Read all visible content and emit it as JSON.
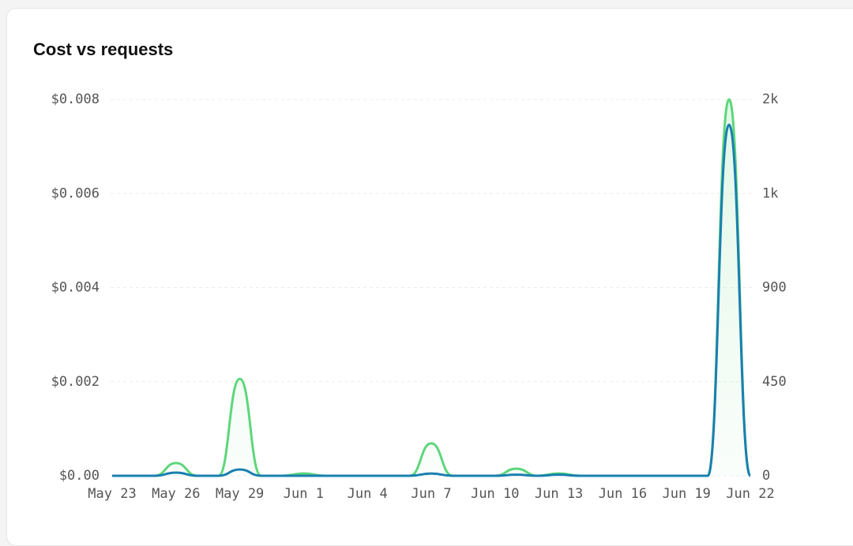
{
  "chart_data": {
    "type": "line",
    "title": "Cost vs requests",
    "categories": [
      "May 23",
      null,
      null,
      "May 26",
      null,
      null,
      "May 29",
      null,
      null,
      "Jun 1",
      null,
      null,
      "Jun 4",
      null,
      null,
      "Jun 7",
      null,
      null,
      "Jun 10",
      null,
      null,
      "Jun 13",
      null,
      null,
      "Jun 16",
      null,
      null,
      "Jun 19",
      null,
      null,
      "Jun 22"
    ],
    "series": [
      {
        "name": "Cost",
        "color": "#5dd67a",
        "axis": "y",
        "values": [
          0,
          0,
          0,
          0.00027,
          0,
          0,
          0.00206,
          0,
          0,
          5e-05,
          0,
          0,
          0,
          0,
          0,
          0.00069,
          0,
          0,
          0,
          0.00015,
          0,
          5e-05,
          0,
          0,
          0,
          0,
          0,
          0,
          0,
          0.008,
          0
        ]
      },
      {
        "name": "Requests",
        "color": "#1a7fb0",
        "axis": "y2",
        "values": [
          0,
          0,
          0,
          15,
          0,
          0,
          30,
          0,
          0,
          0,
          0,
          0,
          0,
          0,
          0,
          11,
          0,
          0,
          0,
          5,
          0,
          5,
          0,
          0,
          0,
          0,
          0,
          0,
          0,
          1679,
          0
        ]
      }
    ],
    "ylim": [
      0,
      0.008
    ],
    "yticks": [
      {
        "value": 0,
        "label": "$0.00"
      },
      {
        "value": 0.002,
        "label": "$0.002"
      },
      {
        "value": 0.004,
        "label": "$0.004"
      },
      {
        "value": 0.006,
        "label": "$0.006"
      },
      {
        "value": 0.008,
        "label": "$0.008"
      }
    ],
    "y2lim": [
      0,
      1800
    ],
    "y2ticks": [
      0,
      450,
      900,
      {
        "value": 1350,
        "label": "1k"
      },
      {
        "value": 1800,
        "label": "2k"
      }
    ],
    "grid": true
  }
}
